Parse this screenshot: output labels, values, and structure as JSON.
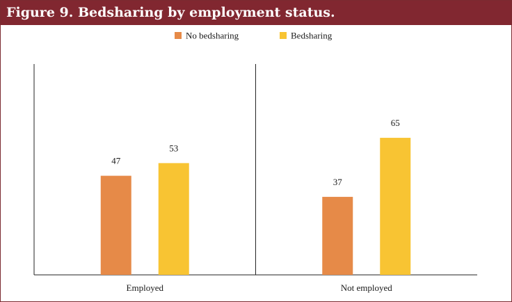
{
  "figure": {
    "title": "Figure 9. Bedsharing by employment status."
  },
  "chart_data": {
    "type": "bar",
    "title": "Figure 9. Bedsharing by employment status.",
    "categories": [
      "Employed",
      "Not employed"
    ],
    "series": [
      {
        "name": "No bedsharing",
        "color": "#e68a48",
        "values": [
          47,
          37
        ]
      },
      {
        "name": "Bedsharing",
        "color": "#f8c433",
        "values": [
          53,
          65
        ]
      }
    ],
    "ylim": [
      0,
      100
    ],
    "grid": false,
    "legend_position": "top-center",
    "xlabel": "",
    "ylabel": ""
  }
}
